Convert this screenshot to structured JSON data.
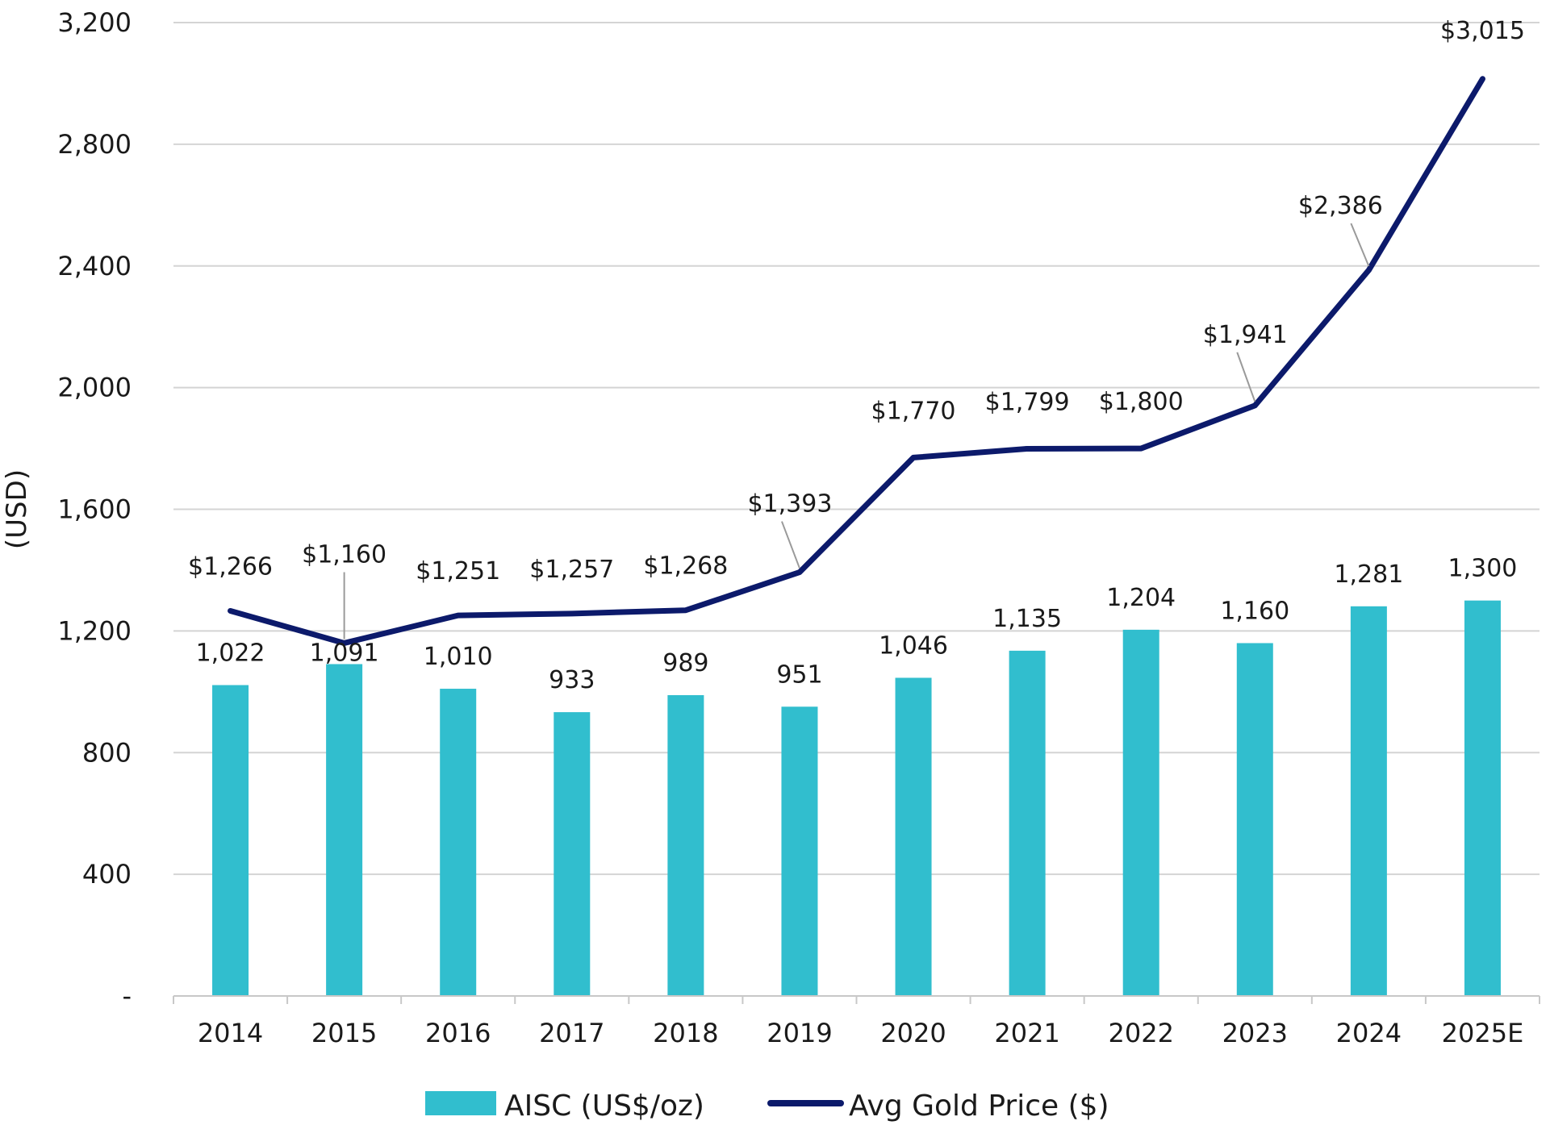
{
  "chart_data": {
    "type": "bar",
    "title": "",
    "xlabel": "",
    "ylabel": "(USD)",
    "ylim": [
      0,
      3200
    ],
    "y_ticks": [
      0,
      400,
      800,
      1200,
      1600,
      2000,
      2400,
      2800,
      3200
    ],
    "y_tick_labels": [
      "-",
      "400",
      "800",
      "1,200",
      "1,600",
      "2,000",
      "2,400",
      "2,800",
      "3,200"
    ],
    "grid": true,
    "legend_position": "bottom",
    "categories": [
      "2014",
      "2015",
      "2016",
      "2017",
      "2018",
      "2019",
      "2020",
      "2021",
      "2022",
      "2023",
      "2024",
      "2025E"
    ],
    "series": [
      {
        "name": "AISC (US$/oz)",
        "type": "bar",
        "color": "#31BECE",
        "values": [
          1022,
          1091,
          1010,
          933,
          989,
          951,
          1046,
          1135,
          1204,
          1160,
          1281,
          1300
        ],
        "labels": [
          "1,022",
          "1,091",
          "1,010",
          "933",
          "989",
          "951",
          "1,046",
          "1,135",
          "1,204",
          "1,160",
          "1,281",
          "1,300"
        ]
      },
      {
        "name": "Avg Gold Price ($)",
        "type": "line",
        "color": "#0C1A6B",
        "values": [
          1266,
          1160,
          1251,
          1257,
          1268,
          1393,
          1770,
          1799,
          1800,
          1941,
          2386,
          3015
        ],
        "labels": [
          "$1,266",
          "$1,160",
          "$1,251",
          "$1,257",
          "$1,268",
          "$1,393",
          "$1,770",
          "$1,799",
          "$1,800",
          "$1,941",
          "$2,386",
          "$3,015"
        ]
      }
    ]
  }
}
